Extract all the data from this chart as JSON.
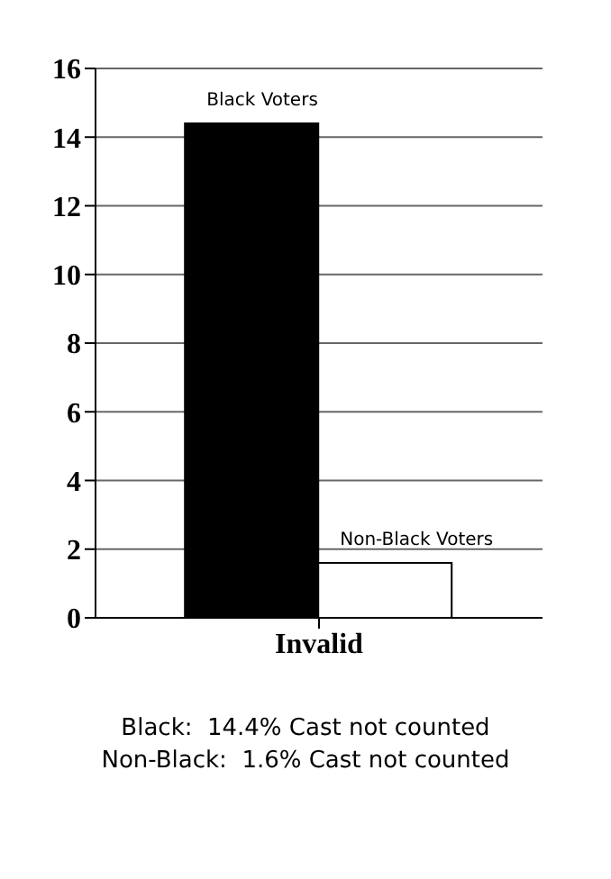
{
  "chart_data": {
    "type": "bar",
    "categories": [
      "Invalid"
    ],
    "series": [
      {
        "name": "Black Voters",
        "color": "#000000",
        "values": [
          14.4
        ]
      },
      {
        "name": "Non-Black Voters",
        "color": "#ffffff",
        "values": [
          1.6
        ]
      }
    ],
    "ylim": [
      0,
      16
    ],
    "yticks": [
      0,
      2,
      4,
      6,
      8,
      10,
      12,
      14,
      16
    ],
    "grid": "y",
    "legend": false,
    "annotations": [
      "Black:  14.4% Cast not counted",
      "Non-Black:  1.6% Cast not counted"
    ]
  }
}
